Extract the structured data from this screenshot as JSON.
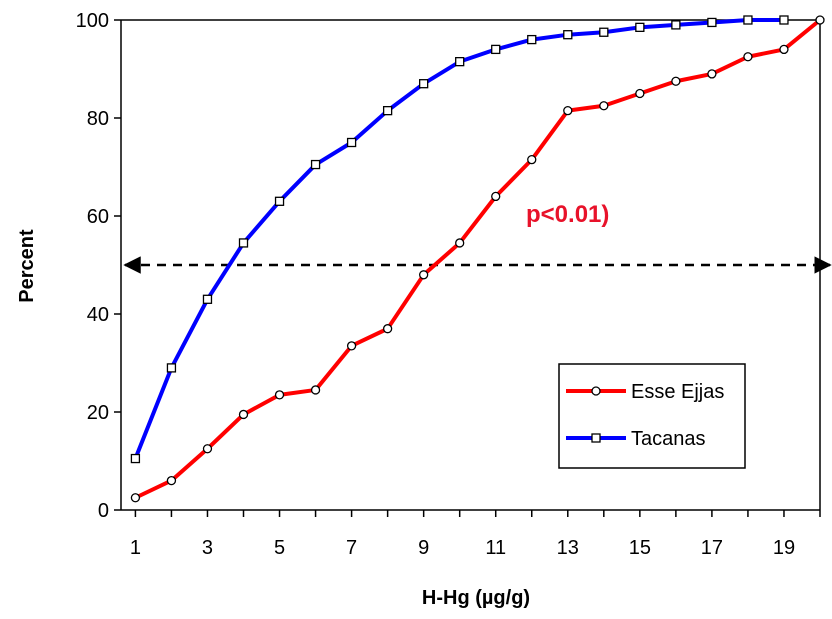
{
  "chart_data": {
    "type": "line",
    "xlabel": "H-Hg (µg/g)",
    "ylabel": "Percent",
    "xlim": [
      0.6,
      20
    ],
    "ylim": [
      0,
      100
    ],
    "x_ticks": [
      "1",
      "3",
      "5",
      "7",
      "9",
      "11",
      "13",
      "15",
      "17",
      "19"
    ],
    "y_ticks": [
      "0",
      "20",
      "40",
      "60",
      "80",
      "100"
    ],
    "grid": false,
    "legend_placement": "lower-right",
    "series": [
      {
        "name": "Esse Ejjas",
        "color": "#ff0000",
        "marker": "circle",
        "x": [
          1,
          2,
          3,
          4,
          5,
          6,
          7,
          8,
          9,
          10,
          11,
          12,
          13,
          14,
          15,
          16,
          17,
          18,
          19,
          20
        ],
        "values": [
          2.5,
          6,
          12.5,
          19.5,
          23.5,
          24.5,
          33.5,
          37,
          48,
          54.5,
          64,
          71.5,
          81.5,
          82.5,
          85,
          87.5,
          89,
          92.5,
          94,
          100
        ]
      },
      {
        "name": "Tacanas",
        "color": "#0000ff",
        "marker": "square",
        "x": [
          1,
          2,
          3,
          4,
          5,
          6,
          7,
          8,
          9,
          10,
          11,
          12,
          13,
          14,
          15,
          16,
          17,
          18,
          19
        ],
        "values": [
          10.5,
          29,
          43,
          54.5,
          63,
          70.5,
          75,
          81.5,
          87,
          91.5,
          94,
          96,
          97,
          97.5,
          98.5,
          99,
          99.5,
          100,
          100
        ]
      }
    ],
    "reference_line": {
      "y": 50,
      "style": "dashed",
      "arrows": "both"
    },
    "annotation": {
      "text": "p<0.01)",
      "color": "#e8122a"
    }
  }
}
